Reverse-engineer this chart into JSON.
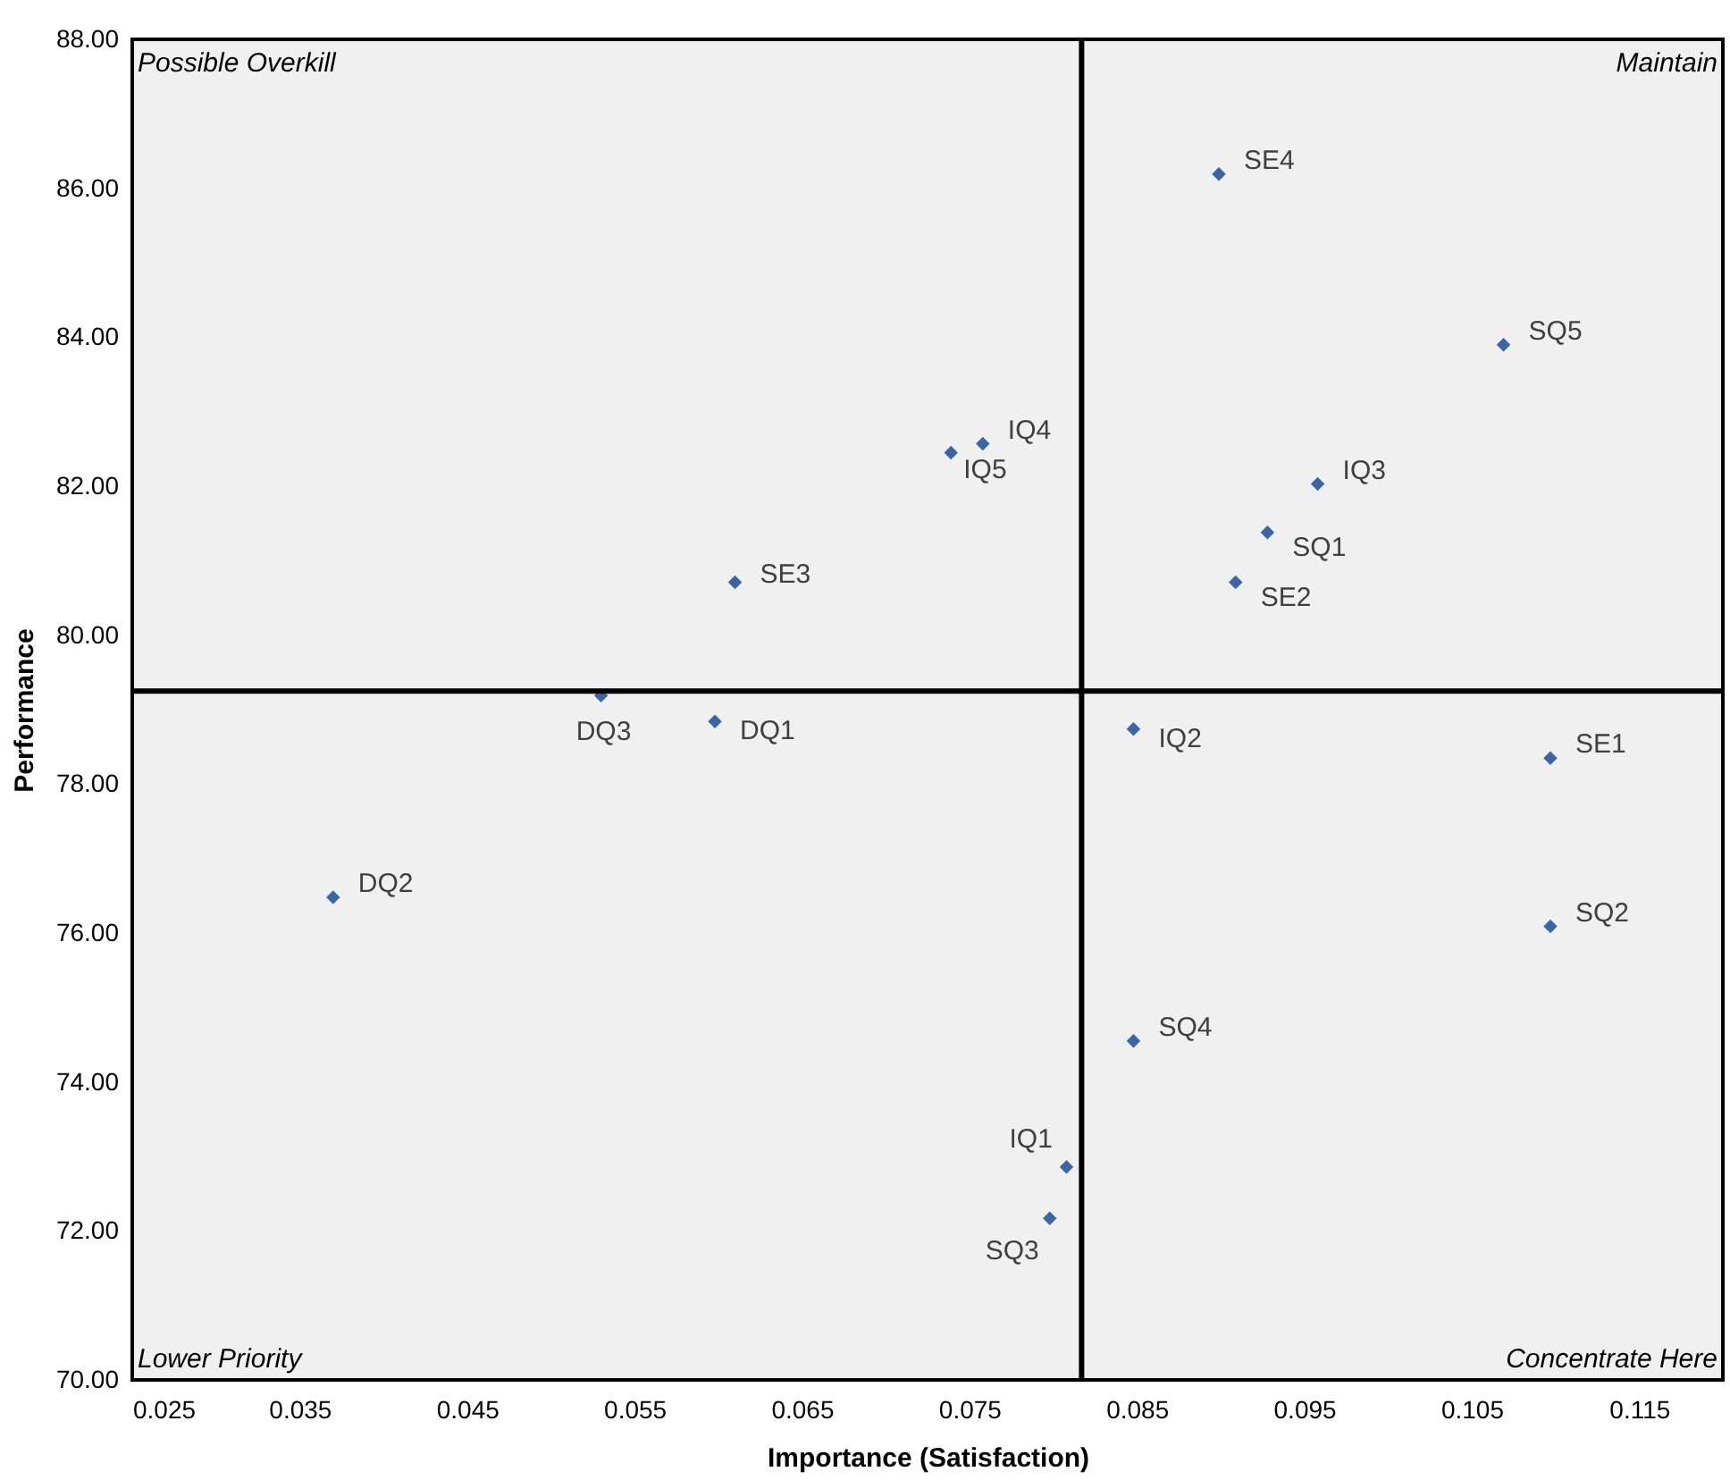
{
  "chart_data": {
    "type": "scatter",
    "xlabel": "Importance (Satisfaction)",
    "ylabel": "Performance",
    "xlim": [
      0.025,
      0.12
    ],
    "ylim": [
      70,
      88
    ],
    "xticks": [
      0.025,
      0.035,
      0.045,
      0.055,
      0.065,
      0.075,
      0.085,
      0.095,
      0.105,
      0.115
    ],
    "yticks": [
      {
        "value": 70,
        "label": "70.00"
      },
      {
        "value": 72,
        "label": "72.00"
      },
      {
        "value": 74,
        "label": "74.00"
      },
      {
        "value": 76,
        "label": "76.00"
      },
      {
        "value": 78,
        "label": "78.00"
      },
      {
        "value": 80,
        "label": "80.00"
      },
      {
        "value": 82,
        "label": "82.00"
      },
      {
        "value": 84,
        "label": "84.00"
      },
      {
        "value": 86,
        "label": "86.00"
      },
      {
        "value": 88,
        "label": "88.00"
      }
    ],
    "marker": "diamond",
    "grid": false,
    "ref_lines": [
      {
        "axis": "x",
        "value": 0.0817,
        "color": "#000000"
      },
      {
        "axis": "y",
        "value": 79.25,
        "color": "#000000"
      }
    ],
    "annotations": [
      "Possible Overkill",
      "Maintain",
      "Lower Priority",
      "Concentrate Here"
    ],
    "series": [
      {
        "name": "SE4",
        "color": "#3a66a8",
        "x": [
          0.0899
        ],
        "values": [
          86.19
        ]
      },
      {
        "name": "SQ5",
        "color": "#3a66a8",
        "x": [
          0.1069
        ],
        "values": [
          83.9
        ]
      },
      {
        "name": "IQ4",
        "color": "#3a66a8",
        "x": [
          0.0758
        ],
        "values": [
          82.57
        ]
      },
      {
        "name": "IQ5",
        "color": "#3a66a8",
        "x": [
          0.0739
        ],
        "values": [
          82.45
        ]
      },
      {
        "name": "IQ3",
        "color": "#3a66a8",
        "x": [
          0.0958
        ],
        "values": [
          82.03
        ]
      },
      {
        "name": "SQ1",
        "color": "#3a66a8",
        "x": [
          0.0928
        ],
        "values": [
          81.38
        ]
      },
      {
        "name": "SE3",
        "color": "#3a66a8",
        "x": [
          0.061
        ],
        "values": [
          80.71
        ]
      },
      {
        "name": "SE2",
        "color": "#3a66a8",
        "x": [
          0.0909
        ],
        "values": [
          80.71
        ]
      },
      {
        "name": "DQ3",
        "color": "#3a66a8",
        "x": [
          0.053
        ],
        "values": [
          79.19
        ]
      },
      {
        "name": "DQ1",
        "color": "#3a66a8",
        "x": [
          0.0598
        ],
        "values": [
          78.84
        ]
      },
      {
        "name": "IQ2",
        "color": "#3a66a8",
        "x": [
          0.0848
        ],
        "values": [
          78.74
        ]
      },
      {
        "name": "SE1",
        "color": "#3a66a8",
        "x": [
          0.1097
        ],
        "values": [
          78.35
        ]
      },
      {
        "name": "DQ2",
        "color": "#3a66a8",
        "x": [
          0.037
        ],
        "values": [
          76.48
        ]
      },
      {
        "name": "SQ2",
        "color": "#3a66a8",
        "x": [
          0.1097
        ],
        "values": [
          76.09
        ]
      },
      {
        "name": "SQ4",
        "color": "#3a66a8",
        "x": [
          0.0848
        ],
        "values": [
          74.55
        ]
      },
      {
        "name": "IQ1",
        "color": "#3a66a8",
        "x": [
          0.0808
        ],
        "values": [
          72.86
        ]
      },
      {
        "name": "SQ3",
        "color": "#3a66a8",
        "x": [
          0.0798
        ],
        "values": [
          72.17
        ]
      }
    ]
  }
}
